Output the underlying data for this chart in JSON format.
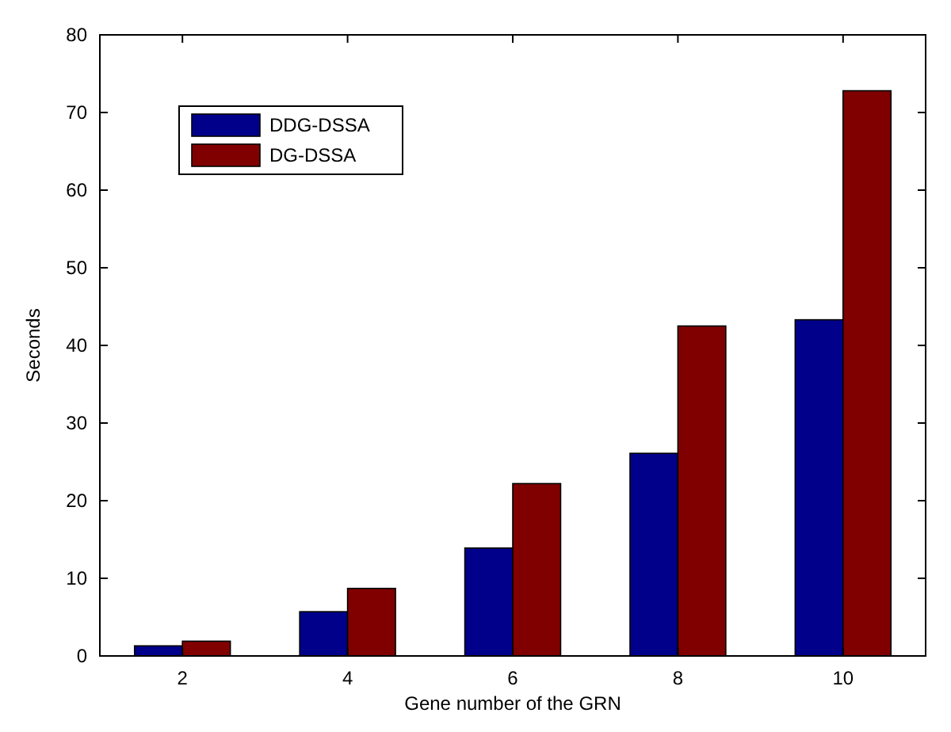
{
  "chart_data": {
    "type": "bar",
    "xlabel": "Gene number of the GRN",
    "ylabel": "Seconds",
    "categories": [
      "2",
      "4",
      "6",
      "8",
      "10"
    ],
    "series": [
      {
        "name": "DDG-DSSA",
        "color": "#00008b",
        "values": [
          1.3,
          5.7,
          13.9,
          26.1,
          43.3
        ]
      },
      {
        "name": "DG-DSSA",
        "color": "#800000",
        "values": [
          1.9,
          8.7,
          22.2,
          42.5,
          72.8
        ]
      }
    ],
    "ylim": [
      0,
      80
    ],
    "yticks": [
      0,
      10,
      20,
      30,
      40,
      50,
      60,
      70,
      80
    ],
    "grid": false,
    "legend": "top left"
  }
}
